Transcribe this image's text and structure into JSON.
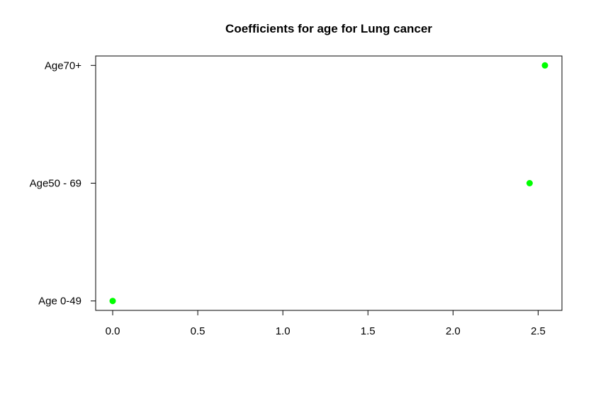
{
  "chart_data": {
    "type": "scatter",
    "title": "Coefficients for age for Lung cancer",
    "xlabel": "",
    "ylabel": "",
    "categories": [
      "Age 0-49",
      "Age50 - 69",
      "Age70+"
    ],
    "values": [
      0.0,
      2.45,
      2.54
    ],
    "xlim": [
      -0.1,
      2.64
    ],
    "x_ticks": [
      0.0,
      0.5,
      1.0,
      1.5,
      2.0,
      2.5
    ],
    "x_tick_labels": [
      "0.0",
      "0.5",
      "1.0",
      "1.5",
      "2.0",
      "2.5"
    ],
    "point_color": "#00ff00",
    "grid": false
  }
}
